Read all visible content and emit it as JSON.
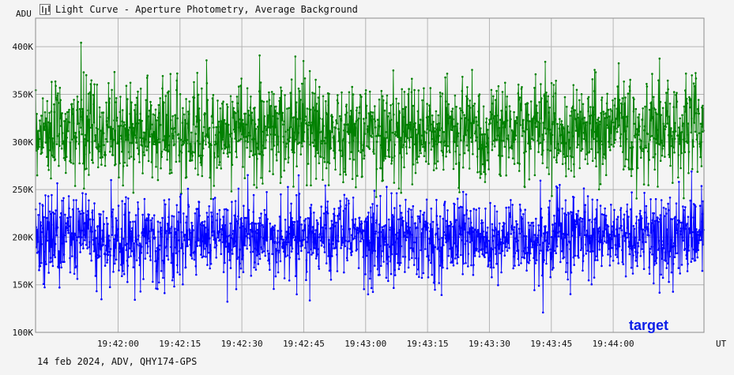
{
  "window": {
    "title": "Light Curve - Aperture Photometry, Average Background",
    "icon": "light-curve-icon"
  },
  "footer": "14 feb 2024, ADV, QHY174-GPS",
  "chart_data": {
    "type": "line",
    "ylabel": "ADU",
    "xunit": "UT",
    "ylim": [
      100000,
      430000
    ],
    "xlim": [
      "19:41:40",
      "19:44:22"
    ],
    "grid": true,
    "yticks": [
      100000,
      150000,
      200000,
      250000,
      300000,
      350000,
      400000
    ],
    "ytick_labels": [
      "100K",
      "150K",
      "200K",
      "250K",
      "300K",
      "350K",
      "400K"
    ],
    "xticks": [
      "19:42:00",
      "19:42:15",
      "19:42:30",
      "19:42:45",
      "19:43:00",
      "19:43:15",
      "19:43:30",
      "19:43:45",
      "19:44:00"
    ],
    "annotation": "target",
    "series": [
      {
        "color": "#008000",
        "mean": 312000,
        "sd": 26000,
        "min_approx": 240000,
        "max_approx": 427000,
        "n_points": 1800
      },
      {
        "color": "#0000ff",
        "mean": 200000,
        "sd": 22000,
        "min_approx": 112000,
        "max_approx": 275000,
        "n_points": 1800
      }
    ]
  }
}
